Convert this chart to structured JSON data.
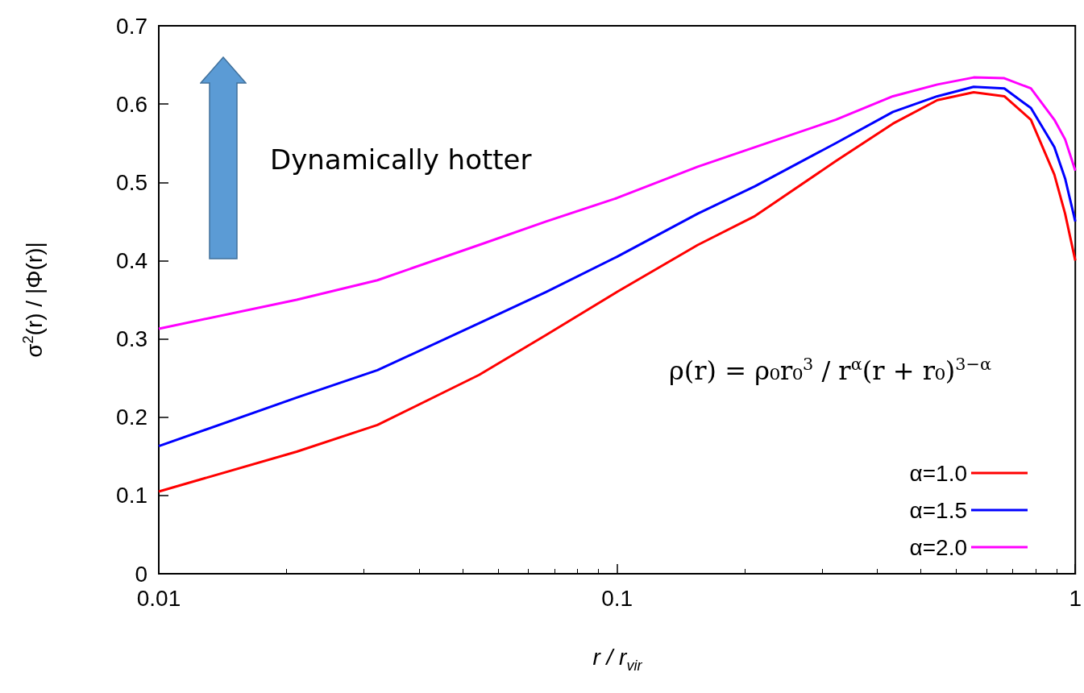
{
  "chart_data": {
    "type": "line",
    "xlabel": "r / r$_{vir}$",
    "ylabel": "σ$^{2}$(r) / |Φ(r)|",
    "log": "x",
    "xlim": [
      0.01,
      1
    ],
    "xticks": [
      0.01,
      0.1,
      1
    ],
    "ylim": [
      0,
      0.7
    ],
    "yticks": [
      0,
      0.1,
      0.2,
      0.3,
      0.4,
      0.5,
      0.6,
      0.7
    ],
    "grid": false,
    "legend": "bottom right",
    "marker": "none",
    "line_style": "solid",
    "x": [
      0.01,
      0.02,
      0.03,
      0.05,
      0.07,
      0.1,
      0.15,
      0.2,
      0.3,
      0.4,
      0.5,
      0.6,
      0.7,
      0.8,
      0.9,
      0.95,
      1
    ],
    "series": [
      {
        "name": "α=1.0",
        "color": "#ff0000",
        "values": [
          0.105,
          0.156,
          0.19,
          0.254,
          0.305,
          0.36,
          0.42,
          0.457,
          0.527,
          0.575,
          0.605,
          0.615,
          0.61,
          0.58,
          0.51,
          0.46,
          0.4
        ]
      },
      {
        "name": "α=1.5",
        "color": "#0000ff",
        "values": [
          0.163,
          0.225,
          0.26,
          0.32,
          0.36,
          0.405,
          0.46,
          0.495,
          0.55,
          0.59,
          0.61,
          0.622,
          0.62,
          0.595,
          0.545,
          0.505,
          0.45
        ]
      },
      {
        "name": "α=2.0",
        "color": "#ff00ff",
        "values": [
          0.313,
          0.35,
          0.375,
          0.42,
          0.45,
          0.48,
          0.52,
          0.545,
          0.58,
          0.61,
          0.625,
          0.634,
          0.633,
          0.62,
          0.58,
          0.555,
          0.515
        ]
      }
    ],
    "annotations": [
      "Dynamically hotter",
      "ρ(r) = ρ₀r₀$^{3}$ / r$^{α}$(r + r₀)$^{3−α}$"
    ]
  }
}
